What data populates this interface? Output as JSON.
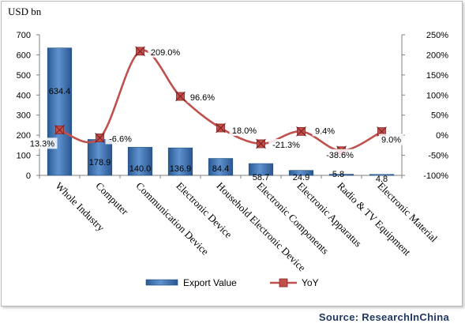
{
  "chart_data": {
    "type": "bar",
    "unit_label": "USD bn",
    "categories": [
      "Whole Industry",
      "Computer",
      "Communication Device",
      "Electronic Device",
      "Household Electronic Device",
      "Electronic Components",
      "Electronic Apparatus",
      "Radio & TV Equipment",
      "Electronic Material"
    ],
    "series": [
      {
        "name": "Export Value",
        "type": "bar",
        "axis": "left",
        "values": [
          634.4,
          178.9,
          140.0,
          136.9,
          84.4,
          58.7,
          24.9,
          5.8,
          4.8
        ],
        "labels": [
          "634.4",
          "178.9",
          "140.0",
          "136.9",
          "84.4",
          "58.7",
          "24.9",
          "5.8",
          "4.8"
        ],
        "color": "#4f81bd"
      },
      {
        "name": "YoY",
        "type": "line",
        "axis": "right",
        "values": [
          13.3,
          -6.6,
          209.0,
          96.6,
          18.0,
          -21.3,
          9.4,
          -38.6,
          9.0
        ],
        "labels": [
          "13.3%",
          "-6.6%",
          "209.0%",
          "96.6%",
          "18.0%",
          "-21.3%",
          "9.4%",
          "-38.6%",
          "9.0%"
        ],
        "color": "#c0504d"
      }
    ],
    "y_left": {
      "min": 0,
      "max": 700,
      "ticks": [
        "0",
        "100",
        "200",
        "300",
        "400",
        "500",
        "600",
        "700"
      ]
    },
    "y_right": {
      "min": -100,
      "max": 250,
      "ticks": [
        "-100%",
        "-50%",
        "0%",
        "50%",
        "100%",
        "150%",
        "200%",
        "250%"
      ]
    },
    "grid": false,
    "legend_position": "bottom"
  },
  "source": "Source:  ResearchInChina"
}
